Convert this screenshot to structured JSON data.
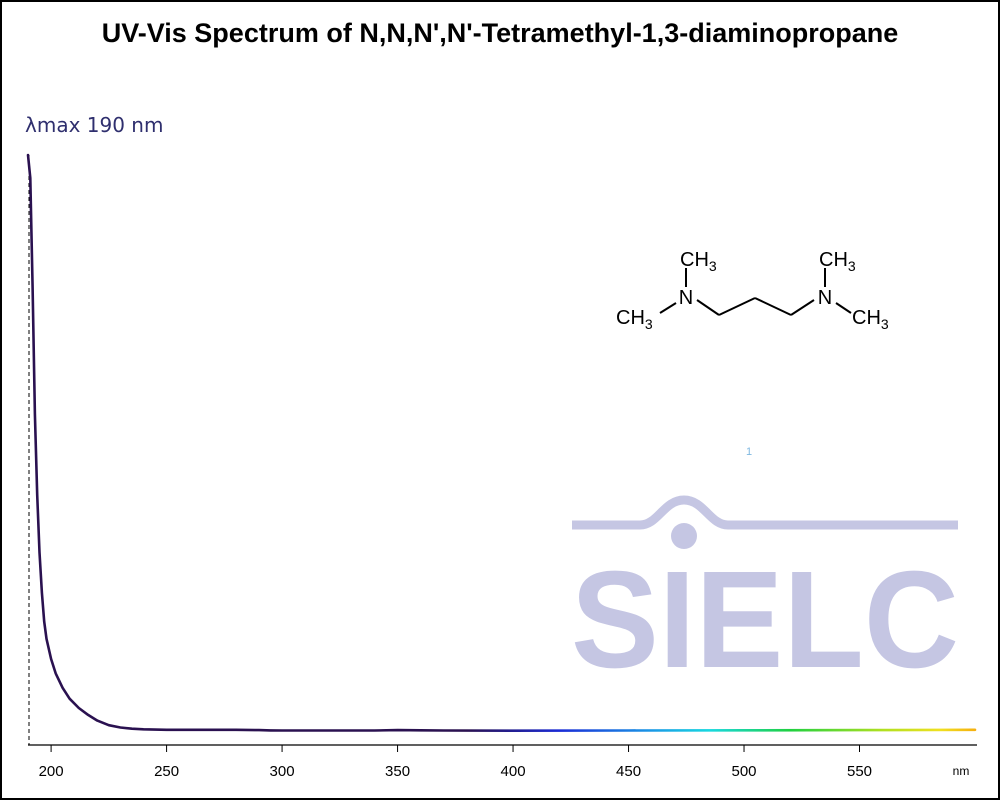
{
  "title": "UV-Vis Spectrum of N,N,N',N'-Tetramethyl-1,3-diaminopropane",
  "annotation": "λmax  190 nm",
  "watermark": "SIELC",
  "footnote": "1",
  "molecule": {
    "name": "N,N,N',N'-Tetramethyl-1,3-diaminopropane",
    "labels": {
      "methyl": "CH",
      "methyl_sub": "3",
      "nitrogen": "N"
    }
  },
  "chart_data": {
    "type": "line",
    "title": "UV-Vis Spectrum of N,N,N',N'-Tetramethyl-1,3-diaminopropane",
    "xlabel": "nm",
    "ylabel": "",
    "xlim": [
      190,
      600
    ],
    "ylim": [
      0,
      1
    ],
    "x_ticks": [
      200,
      250,
      300,
      350,
      400,
      450,
      500,
      550
    ],
    "lambda_max": 190,
    "y_axis_shown": false,
    "grid": false,
    "series": [
      {
        "x": [
          190,
          191,
          192,
          193,
          194,
          195,
          196,
          197,
          198,
          200,
          202,
          205,
          208,
          212,
          216,
          220,
          225,
          230,
          235,
          240,
          245,
          250,
          260,
          280,
          290,
          295,
          300,
          320,
          340,
          350,
          360,
          370,
          400,
          450,
          500,
          550,
          600
        ],
        "y": [
          1.0,
          0.96,
          0.77,
          0.55,
          0.41,
          0.31,
          0.24,
          0.19,
          0.16,
          0.125,
          0.1,
          0.075,
          0.056,
          0.04,
          0.028,
          0.018,
          0.01,
          0.006,
          0.004,
          0.003,
          0.0025,
          0.002,
          0.002,
          0.002,
          0.0015,
          0.001,
          0.0008,
          0.0008,
          0.0008,
          0.0015,
          0.0012,
          0.0008,
          0.0006,
          0.0008,
          0.0012,
          0.0015,
          0.002
        ]
      }
    ],
    "line_gradient": [
      {
        "nm": 190,
        "color": "#2a1150"
      },
      {
        "nm": 380,
        "color": "#2a1150"
      },
      {
        "nm": 420,
        "color": "#1a2bd6"
      },
      {
        "nm": 460,
        "color": "#1a98e6"
      },
      {
        "nm": 485,
        "color": "#18d8e0"
      },
      {
        "nm": 520,
        "color": "#20d040"
      },
      {
        "nm": 560,
        "color": "#b0e020"
      },
      {
        "nm": 585,
        "color": "#f0e020"
      },
      {
        "nm": 600,
        "color": "#f5b010"
      }
    ],
    "colors": {
      "watermark": "#c5c6e3",
      "annotation": "#2f2f6e"
    }
  }
}
